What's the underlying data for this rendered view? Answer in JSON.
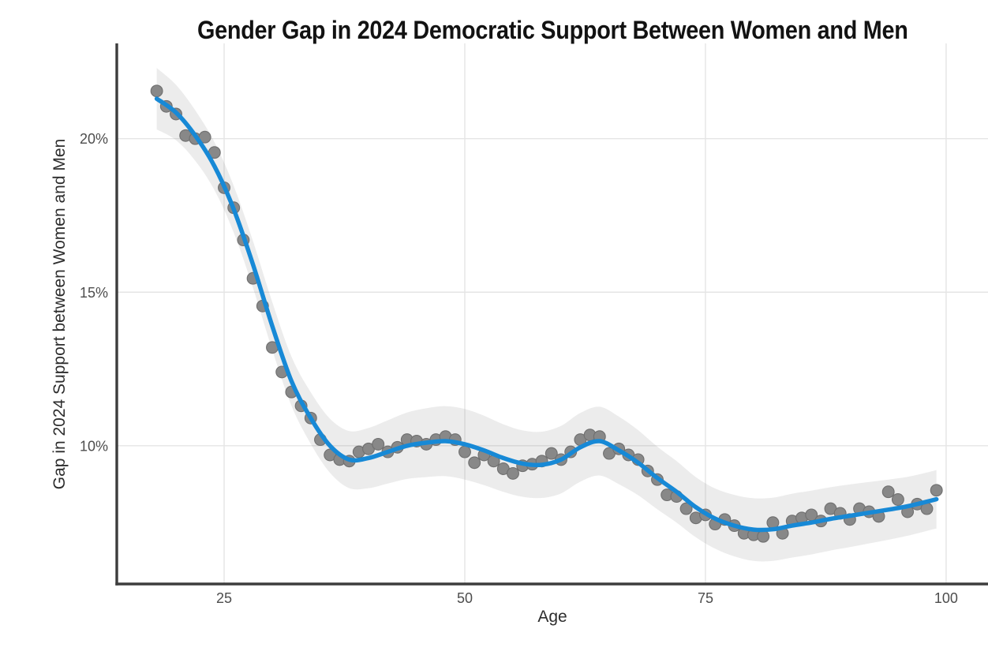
{
  "title": "Gender Gap in 2024 Democratic Support Between Women and Men",
  "axes": {
    "x_label": "Age",
    "y_label": "Gap in 2024 Support between Women and Men"
  },
  "colors": {
    "background": "#ffffff",
    "title_text": "#121212",
    "axis_title_text": "#2d2d2d",
    "tick_text": "#4d4d4d",
    "gridline": "#e5e5e5",
    "axis_line": "#3d3d3d",
    "smooth_line": "#1789d6",
    "point_fill": "#888888",
    "point_stroke": "#6f6f6f",
    "band_fill": "rgba(125,125,125,0.15)"
  },
  "chart_data": {
    "type": "scatter",
    "title": "Gender Gap in 2024 Democratic Support Between Women and Men",
    "xlabel": "Age",
    "ylabel": "Gap in 2024 Support between Women and Men",
    "xlim": [
      13.85,
      104.35
    ],
    "ylim": [
      5.5,
      23.1
    ],
    "grid": true,
    "legend": "none",
    "x_ticks": [
      25,
      50,
      75,
      100
    ],
    "x_tick_labels": [
      "25",
      "50",
      "75",
      "100"
    ],
    "y_ticks": [
      10,
      15,
      20
    ],
    "y_tick_labels": [
      "10%",
      "15%",
      "20%"
    ],
    "points_note": "scatter points as [age, gap_percent]",
    "points": [
      [
        18,
        21.55
      ],
      [
        19,
        21.05
      ],
      [
        20,
        20.8
      ],
      [
        21,
        20.1
      ],
      [
        22,
        20.0
      ],
      [
        23,
        20.05
      ],
      [
        24,
        19.55
      ],
      [
        25,
        18.4
      ],
      [
        26,
        17.75
      ],
      [
        27,
        16.7
      ],
      [
        28,
        15.45
      ],
      [
        29,
        14.55
      ],
      [
        30,
        13.2
      ],
      [
        31,
        12.4
      ],
      [
        32,
        11.75
      ],
      [
        33,
        11.3
      ],
      [
        34,
        10.9
      ],
      [
        35,
        10.2
      ],
      [
        36,
        9.7
      ],
      [
        37,
        9.55
      ],
      [
        38,
        9.5
      ],
      [
        39,
        9.8
      ],
      [
        40,
        9.9
      ],
      [
        41,
        10.05
      ],
      [
        42,
        9.8
      ],
      [
        43,
        9.95
      ],
      [
        44,
        10.2
      ],
      [
        45,
        10.15
      ],
      [
        46,
        10.05
      ],
      [
        47,
        10.2
      ],
      [
        48,
        10.3
      ],
      [
        49,
        10.2
      ],
      [
        50,
        9.8
      ],
      [
        51,
        9.45
      ],
      [
        52,
        9.7
      ],
      [
        53,
        9.5
      ],
      [
        54,
        9.25
      ],
      [
        55,
        9.1
      ],
      [
        56,
        9.35
      ],
      [
        57,
        9.4
      ],
      [
        58,
        9.5
      ],
      [
        59,
        9.75
      ],
      [
        60,
        9.55
      ],
      [
        61,
        9.8
      ],
      [
        62,
        10.2
      ],
      [
        63,
        10.35
      ],
      [
        64,
        10.3
      ],
      [
        65,
        9.75
      ],
      [
        66,
        9.9
      ],
      [
        67,
        9.7
      ],
      [
        68,
        9.55
      ],
      [
        69,
        9.18
      ],
      [
        70,
        8.9
      ],
      [
        71,
        8.4
      ],
      [
        72,
        8.35
      ],
      [
        73,
        7.95
      ],
      [
        74,
        7.65
      ],
      [
        75,
        7.75
      ],
      [
        76,
        7.45
      ],
      [
        77,
        7.6
      ],
      [
        78,
        7.4
      ],
      [
        79,
        7.15
      ],
      [
        80,
        7.1
      ],
      [
        81,
        7.05
      ],
      [
        82,
        7.5
      ],
      [
        83,
        7.15
      ],
      [
        84,
        7.55
      ],
      [
        85,
        7.65
      ],
      [
        86,
        7.75
      ],
      [
        87,
        7.55
      ],
      [
        88,
        7.95
      ],
      [
        89,
        7.8
      ],
      [
        90,
        7.6
      ],
      [
        91,
        7.95
      ],
      [
        92,
        7.85
      ],
      [
        93,
        7.7
      ],
      [
        94,
        8.5
      ],
      [
        95,
        8.25
      ],
      [
        96,
        7.85
      ],
      [
        97,
        8.1
      ],
      [
        98,
        7.95
      ],
      [
        99,
        8.55
      ]
    ],
    "smooth_line": {
      "x": [
        18,
        20,
        22,
        24,
        26,
        28,
        30,
        32,
        34,
        36,
        38,
        40,
        42,
        44,
        46,
        48,
        50,
        52,
        54,
        56,
        58,
        60,
        62,
        64,
        66,
        68,
        70,
        72,
        74,
        76,
        78,
        80,
        82,
        84,
        86,
        88,
        90,
        92,
        94,
        96,
        98,
        99
      ],
      "y": [
        21.3,
        20.85,
        20.1,
        19.1,
        17.7,
        15.9,
        13.9,
        12.1,
        10.9,
        10.0,
        9.55,
        9.6,
        9.8,
        10.0,
        10.1,
        10.15,
        10.05,
        9.85,
        9.6,
        9.42,
        9.38,
        9.55,
        9.95,
        10.15,
        9.85,
        9.45,
        8.95,
        8.5,
        8.0,
        7.63,
        7.4,
        7.27,
        7.28,
        7.4,
        7.5,
        7.62,
        7.72,
        7.82,
        7.92,
        8.03,
        8.18,
        8.26
      ]
    },
    "ci_band": {
      "x": [
        18,
        20,
        22,
        24,
        26,
        28,
        30,
        32,
        34,
        36,
        38,
        40,
        42,
        44,
        46,
        48,
        50,
        52,
        54,
        56,
        58,
        60,
        62,
        64,
        66,
        68,
        70,
        72,
        74,
        76,
        78,
        80,
        82,
        84,
        86,
        88,
        90,
        92,
        94,
        96,
        98,
        99
      ],
      "upper": [
        22.3,
        21.75,
        20.92,
        19.88,
        18.46,
        16.66,
        14.68,
        12.9,
        11.74,
        10.88,
        10.48,
        10.58,
        10.83,
        11.08,
        11.22,
        11.29,
        11.2,
        10.98,
        10.7,
        10.5,
        10.46,
        10.65,
        11.07,
        11.27,
        10.95,
        10.51,
        9.97,
        9.5,
        8.98,
        8.61,
        8.4,
        8.29,
        8.31,
        8.44,
        8.54,
        8.65,
        8.74,
        8.82,
        8.9,
        8.99,
        9.13,
        9.21
      ],
      "lower": [
        20.3,
        19.95,
        19.28,
        18.32,
        16.94,
        15.14,
        13.12,
        11.3,
        10.06,
        9.12,
        8.62,
        8.62,
        8.77,
        8.92,
        8.98,
        9.01,
        8.9,
        8.72,
        8.5,
        8.34,
        8.3,
        8.45,
        8.83,
        9.03,
        8.75,
        8.39,
        7.93,
        7.5,
        7.02,
        6.65,
        6.4,
        6.25,
        6.25,
        6.36,
        6.46,
        6.59,
        6.7,
        6.82,
        6.94,
        7.07,
        7.23,
        7.31
      ]
    }
  }
}
